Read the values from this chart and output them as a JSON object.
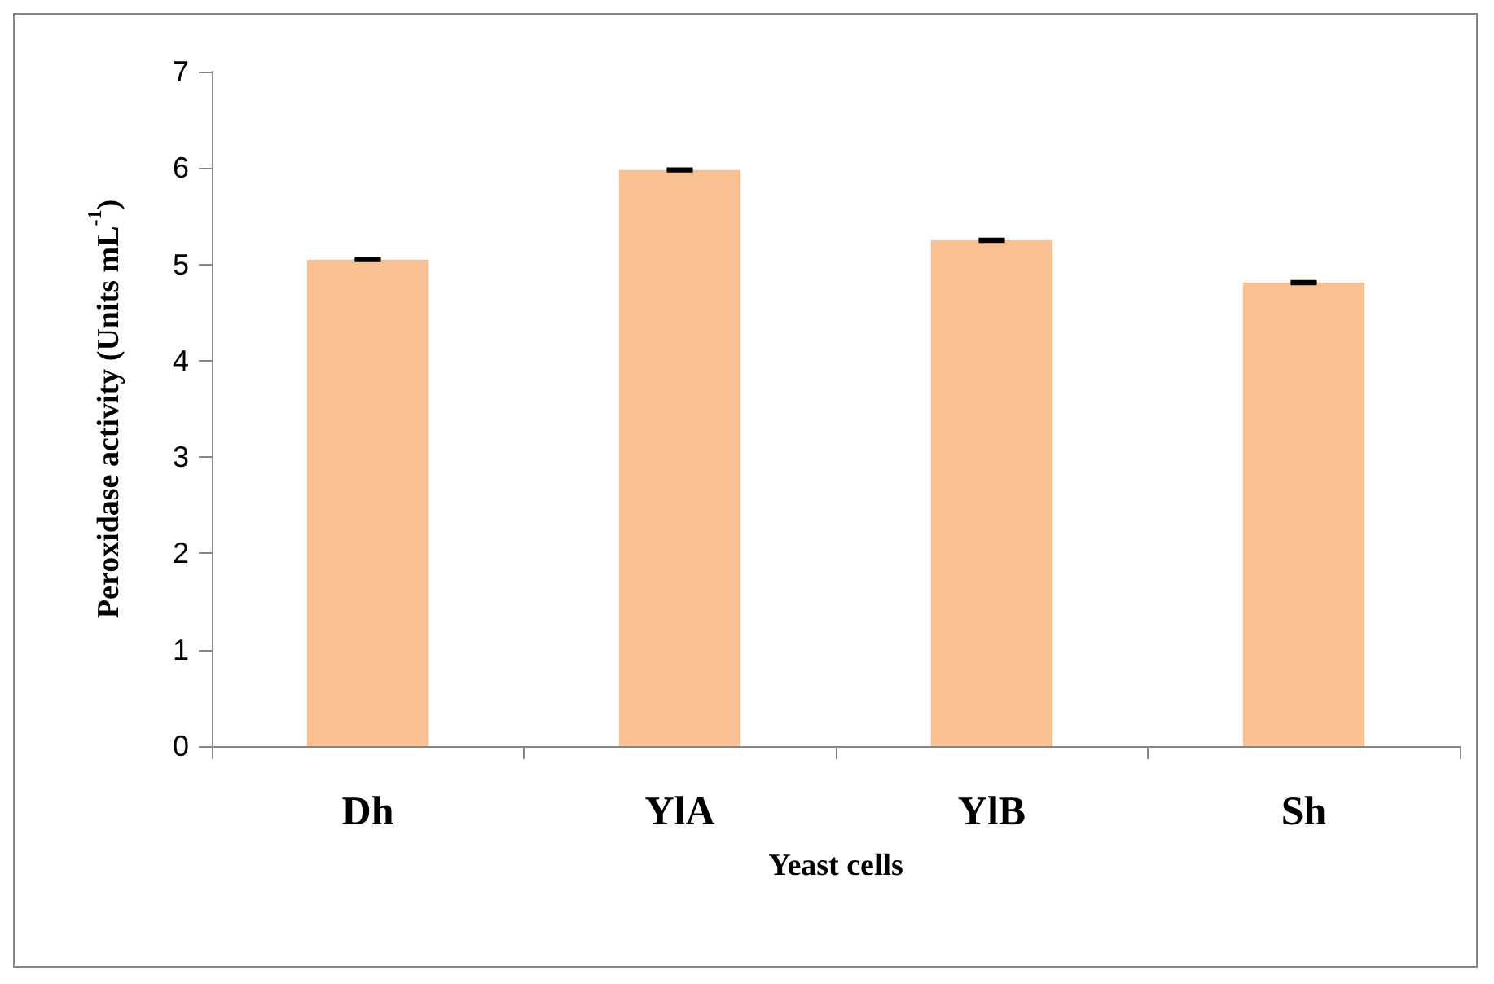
{
  "chart_data": {
    "type": "bar",
    "xlabel": "Yeast cells",
    "ylabel": "Peroxidase activity (Units mL$^{-1}$)",
    "categories": [
      "Dh",
      "YlA",
      "YlB",
      "Sh"
    ],
    "values": [
      5.05,
      5.98,
      5.25,
      4.81
    ],
    "errors": [
      0.01,
      0.01,
      0.01,
      0.01
    ],
    "color": "#f9c192",
    "ylim": [
      0,
      7
    ],
    "yticks": [
      0,
      1,
      2,
      3,
      4,
      5,
      6,
      7
    ],
    "grid": false
  }
}
